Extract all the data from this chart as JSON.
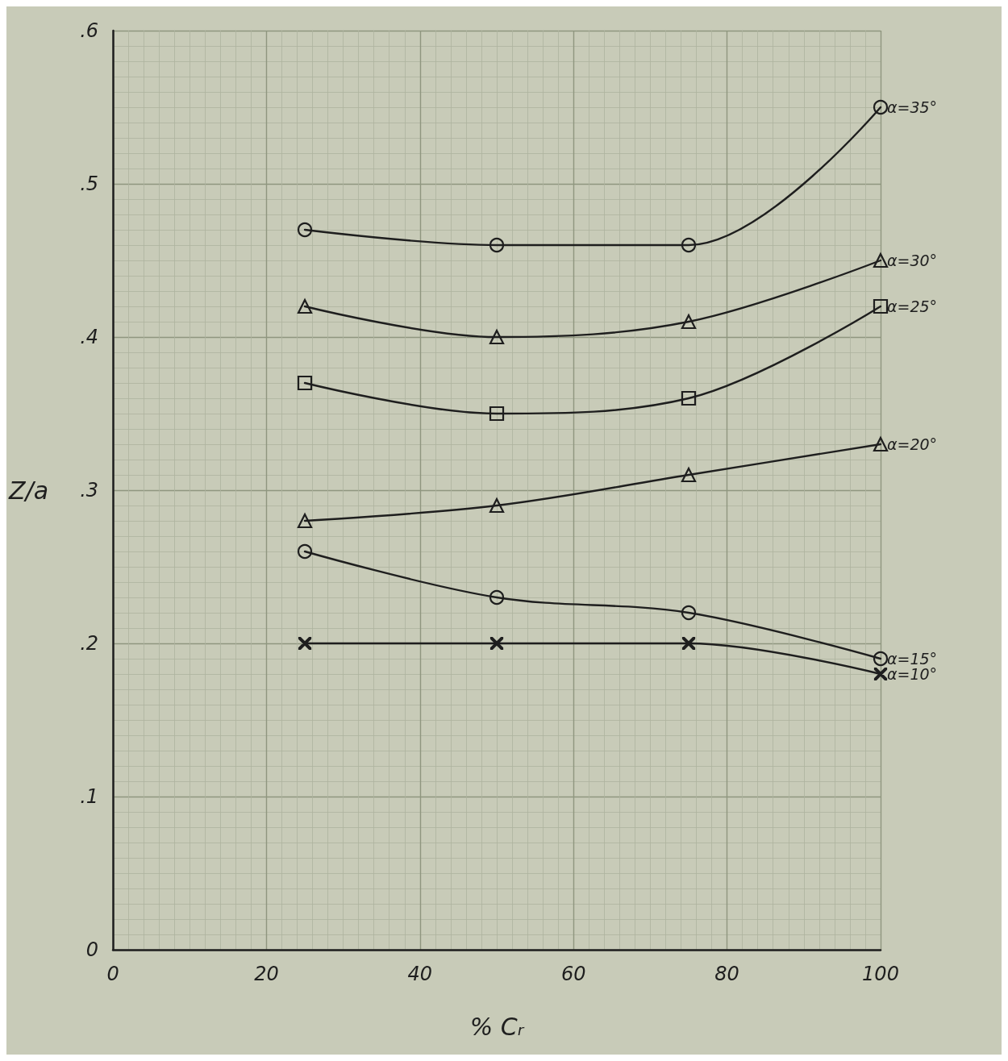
{
  "chart_data": {
    "type": "line",
    "xlabel": "% Cᵣ",
    "ylabel": "Z/a",
    "x": [
      25,
      50,
      75,
      100
    ],
    "xlim": [
      0,
      100
    ],
    "xticks": [
      0,
      20,
      40,
      60,
      80,
      100
    ],
    "ylim": [
      0,
      0.6
    ],
    "yticks": [
      0,
      {
        "value": 0.1,
        "label": ".1"
      },
      {
        "value": 0.2,
        "label": ".2"
      },
      {
        "value": 0.3,
        "label": ".3"
      },
      {
        "value": 0.4,
        "label": ".4"
      },
      {
        "value": 0.5,
        "label": ".5"
      },
      {
        "value": 0.6,
        "label": ".6"
      }
    ],
    "grid": true,
    "legend": false,
    "line_style": "solid",
    "series": [
      {
        "name": "α=35°",
        "color": "#1e1e1e",
        "marker": "circle",
        "values": [
          0.47,
          0.46,
          0.46,
          0.55
        ]
      },
      {
        "name": "α=30°",
        "color": "#1e1e1e",
        "marker": "triangle",
        "values": [
          0.42,
          0.4,
          0.41,
          0.45
        ]
      },
      {
        "name": "α=25°",
        "color": "#1e1e1e",
        "marker": "square",
        "values": [
          0.37,
          0.35,
          0.36,
          0.42
        ]
      },
      {
        "name": "α=20°",
        "color": "#1e1e1e",
        "marker": "triangle",
        "values": [
          0.28,
          0.29,
          0.31,
          0.33
        ]
      },
      {
        "name": "α=15°",
        "color": "#1e1e1e",
        "marker": "circle",
        "values": [
          0.26,
          0.23,
          0.22,
          0.19
        ]
      },
      {
        "name": "α=10°",
        "color": "#1e1e1e",
        "marker": "cross",
        "values": [
          0.2,
          0.2,
          0.2,
          0.18
        ]
      }
    ]
  }
}
